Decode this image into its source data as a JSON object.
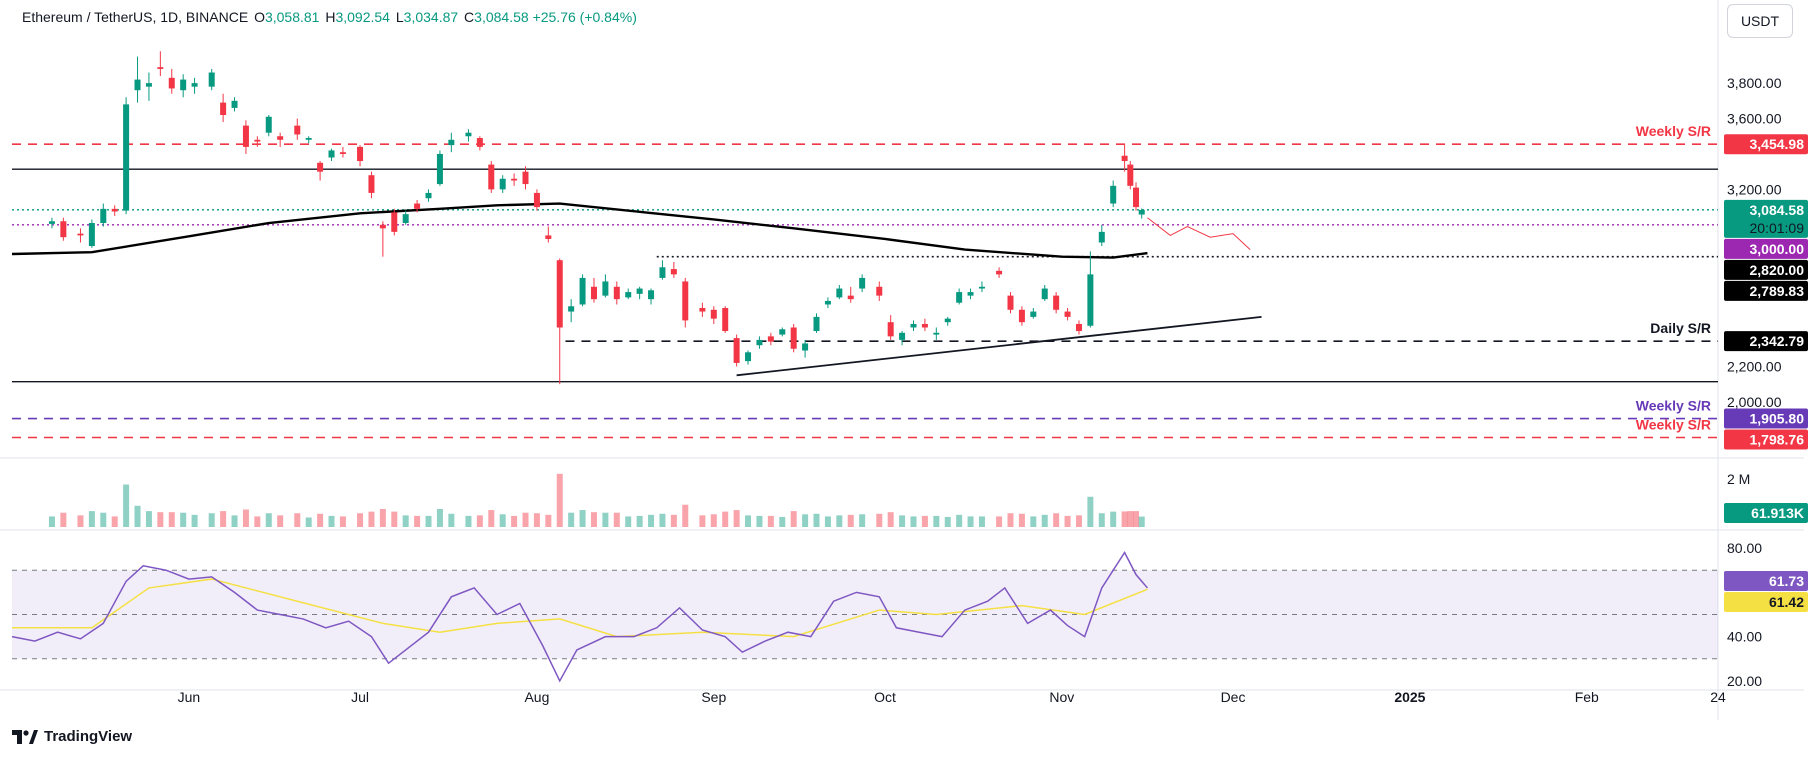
{
  "header": {
    "symbol": "Ethereum / TetherUS, 1D, BINANCE",
    "open_key": "O",
    "open": "3,058.81",
    "high_key": "H",
    "high": "3,092.54",
    "low_key": "L",
    "low": "3,034.87",
    "close_key": "C",
    "close": "3,084.58",
    "change": "+25.76 (+0.84%)"
  },
  "currency_button": "USDT",
  "brand": "TradingView",
  "colors": {
    "up": "#089981",
    "down": "#f23645",
    "ma": "#000000",
    "rsi": "#7e57c2",
    "rsi_ma": "#f5e044",
    "weekly": "#f23645",
    "purple": "#673ab7"
  },
  "chart_data": [
    {
      "type": "candlestick",
      "title": "",
      "price_axis_ticks": [
        "3,800.00",
        "3,600.00",
        "3,200.00",
        "2,200.00",
        "2,000.00"
      ],
      "time_axis_ticks": [
        "Jun",
        "Jul",
        "Aug",
        "Sep",
        "Oct",
        "Nov",
        "Dec",
        "2025",
        "Feb",
        "24"
      ],
      "ylim": [
        1700,
        4100
      ],
      "date_range": [
        "2024-05-01",
        "2025-02-24"
      ],
      "candles": [
        [
          "2024-05-08",
          3005,
          3040,
          2980,
          3020
        ],
        [
          "2024-05-10",
          3020,
          3040,
          2910,
          2930
        ],
        [
          "2024-05-13",
          2950,
          2980,
          2900,
          2940
        ],
        [
          "2024-05-15",
          2880,
          3030,
          2870,
          3010
        ],
        [
          "2024-05-17",
          3010,
          3120,
          2990,
          3090
        ],
        [
          "2024-05-19",
          3090,
          3110,
          3050,
          3075
        ],
        [
          "2024-05-21",
          3080,
          3720,
          3060,
          3680
        ],
        [
          "2024-05-23",
          3760,
          3950,
          3690,
          3820
        ],
        [
          "2024-05-25",
          3780,
          3860,
          3700,
          3800
        ],
        [
          "2024-05-27",
          3890,
          3980,
          3840,
          3880
        ],
        [
          "2024-05-29",
          3830,
          3880,
          3740,
          3770
        ],
        [
          "2024-05-31",
          3760,
          3850,
          3720,
          3820
        ],
        [
          "2024-06-02",
          3780,
          3830,
          3740,
          3800
        ],
        [
          "2024-06-05",
          3780,
          3880,
          3760,
          3860
        ],
        [
          "2024-06-07",
          3690,
          3740,
          3580,
          3620
        ],
        [
          "2024-06-09",
          3660,
          3720,
          3640,
          3700
        ],
        [
          "2024-06-11",
          3560,
          3590,
          3400,
          3440
        ],
        [
          "2024-06-13",
          3480,
          3500,
          3440,
          3470
        ],
        [
          "2024-06-15",
          3520,
          3620,
          3500,
          3610
        ],
        [
          "2024-06-17",
          3500,
          3520,
          3440,
          3480
        ],
        [
          "2024-06-20",
          3560,
          3600,
          3480,
          3510
        ],
        [
          "2024-06-22",
          3480,
          3500,
          3460,
          3490
        ],
        [
          "2024-06-24",
          3350,
          3360,
          3250,
          3300
        ],
        [
          "2024-06-26",
          3380,
          3430,
          3360,
          3420
        ],
        [
          "2024-06-28",
          3410,
          3440,
          3380,
          3400
        ],
        [
          "2024-07-01",
          3440,
          3450,
          3330,
          3360
        ],
        [
          "2024-07-03",
          3280,
          3300,
          3150,
          3180
        ],
        [
          "2024-07-05",
          3000,
          3020,
          2820,
          2980
        ],
        [
          "2024-07-07",
          3070,
          3090,
          2940,
          2960
        ],
        [
          "2024-07-09",
          3010,
          3080,
          3000,
          3060
        ],
        [
          "2024-07-11",
          3120,
          3140,
          3070,
          3090
        ],
        [
          "2024-07-13",
          3150,
          3200,
          3130,
          3180
        ],
        [
          "2024-07-15",
          3230,
          3420,
          3220,
          3400
        ],
        [
          "2024-07-17",
          3450,
          3520,
          3410,
          3480
        ],
        [
          "2024-07-20",
          3500,
          3540,
          3470,
          3520
        ],
        [
          "2024-07-22",
          3490,
          3500,
          3420,
          3440
        ],
        [
          "2024-07-24",
          3340,
          3360,
          3180,
          3200
        ],
        [
          "2024-07-26",
          3200,
          3280,
          3180,
          3260
        ],
        [
          "2024-07-28",
          3260,
          3290,
          3220,
          3250
        ],
        [
          "2024-07-30",
          3300,
          3330,
          3200,
          3230
        ],
        [
          "2024-08-01",
          3180,
          3200,
          3080,
          3100
        ],
        [
          "2024-08-03",
          2940,
          2990,
          2900,
          2920
        ],
        [
          "2024-08-05",
          2800,
          2810,
          2100,
          2420
        ],
        [
          "2024-08-07",
          2510,
          2580,
          2450,
          2540
        ],
        [
          "2024-08-09",
          2550,
          2720,
          2540,
          2700
        ],
        [
          "2024-08-11",
          2650,
          2700,
          2560,
          2580
        ],
        [
          "2024-08-13",
          2600,
          2720,
          2590,
          2680
        ],
        [
          "2024-08-15",
          2650,
          2680,
          2550,
          2580
        ],
        [
          "2024-08-17",
          2590,
          2640,
          2580,
          2620
        ],
        [
          "2024-08-19",
          2610,
          2650,
          2580,
          2640
        ],
        [
          "2024-08-21",
          2580,
          2640,
          2550,
          2630
        ],
        [
          "2024-08-23",
          2700,
          2800,
          2690,
          2760
        ],
        [
          "2024-08-25",
          2750,
          2790,
          2700,
          2720
        ],
        [
          "2024-08-27",
          2680,
          2700,
          2420,
          2460
        ],
        [
          "2024-08-30",
          2530,
          2560,
          2480,
          2510
        ],
        [
          "2024-09-01",
          2520,
          2540,
          2440,
          2470
        ],
        [
          "2024-09-03",
          2530,
          2540,
          2390,
          2400
        ],
        [
          "2024-09-05",
          2360,
          2380,
          2200,
          2220
        ],
        [
          "2024-09-07",
          2230,
          2290,
          2210,
          2280
        ],
        [
          "2024-09-09",
          2320,
          2370,
          2300,
          2350
        ],
        [
          "2024-09-11",
          2370,
          2390,
          2320,
          2340
        ],
        [
          "2024-09-13",
          2380,
          2420,
          2370,
          2410
        ],
        [
          "2024-09-15",
          2420,
          2440,
          2280,
          2300
        ],
        [
          "2024-09-17",
          2290,
          2350,
          2250,
          2330
        ],
        [
          "2024-09-19",
          2400,
          2500,
          2390,
          2480
        ],
        [
          "2024-09-21",
          2550,
          2590,
          2530,
          2570
        ],
        [
          "2024-09-23",
          2590,
          2660,
          2580,
          2640
        ],
        [
          "2024-09-25",
          2600,
          2650,
          2560,
          2580
        ],
        [
          "2024-09-27",
          2640,
          2720,
          2620,
          2700
        ],
        [
          "2024-09-30",
          2650,
          2680,
          2570,
          2600
        ],
        [
          "2024-10-02",
          2450,
          2490,
          2350,
          2370
        ],
        [
          "2024-10-04",
          2350,
          2400,
          2320,
          2390
        ],
        [
          "2024-10-06",
          2420,
          2460,
          2400,
          2440
        ],
        [
          "2024-10-08",
          2440,
          2470,
          2400,
          2420
        ],
        [
          "2024-10-10",
          2380,
          2420,
          2350,
          2390
        ],
        [
          "2024-10-12",
          2450,
          2480,
          2430,
          2470
        ],
        [
          "2024-10-14",
          2560,
          2640,
          2550,
          2620
        ],
        [
          "2024-10-16",
          2600,
          2640,
          2580,
          2620
        ],
        [
          "2024-10-18",
          2640,
          2680,
          2620,
          2650
        ],
        [
          "2024-10-21",
          2740,
          2760,
          2700,
          2720
        ],
        [
          "2024-10-23",
          2600,
          2620,
          2500,
          2520
        ],
        [
          "2024-10-25",
          2520,
          2540,
          2430,
          2450
        ],
        [
          "2024-10-27",
          2480,
          2530,
          2470,
          2510
        ],
        [
          "2024-10-29",
          2580,
          2660,
          2570,
          2640
        ],
        [
          "2024-10-31",
          2600,
          2620,
          2500,
          2520
        ],
        [
          "2024-11-02",
          2510,
          2530,
          2460,
          2480
        ],
        [
          "2024-11-04",
          2440,
          2460,
          2380,
          2400
        ],
        [
          "2024-11-06",
          2430,
          2850,
          2420,
          2720
        ],
        [
          "2024-11-08",
          2900,
          3000,
          2880,
          2960
        ],
        [
          "2024-11-10",
          3120,
          3250,
          3100,
          3220
        ],
        [
          "2024-11-12",
          3390,
          3454,
          3300,
          3360
        ],
        [
          "2024-11-13",
          3340,
          3360,
          3200,
          3220
        ],
        [
          "2024-11-14",
          3210,
          3240,
          3080,
          3100
        ],
        [
          "2024-11-15",
          3058,
          3092,
          3035,
          3084
        ]
      ],
      "ma_200": [
        [
          "2024-05-01",
          2835
        ],
        [
          "2024-05-15",
          2845
        ],
        [
          "2024-06-01",
          2935
        ],
        [
          "2024-06-15",
          3010
        ],
        [
          "2024-07-01",
          3065
        ],
        [
          "2024-07-15",
          3090
        ],
        [
          "2024-07-25",
          3110
        ],
        [
          "2024-08-05",
          3120
        ],
        [
          "2024-08-20",
          3070
        ],
        [
          "2024-09-01",
          3030
        ],
        [
          "2024-09-15",
          2980
        ],
        [
          "2024-10-01",
          2920
        ],
        [
          "2024-10-15",
          2860
        ],
        [
          "2024-11-01",
          2820
        ],
        [
          "2024-11-10",
          2815
        ],
        [
          "2024-11-16",
          2840
        ]
      ],
      "forecast_path": [
        [
          "2024-11-16",
          3040
        ],
        [
          "2024-11-20",
          2940
        ],
        [
          "2024-11-23",
          2990
        ],
        [
          "2024-11-27",
          2930
        ],
        [
          "2024-12-01",
          2950
        ],
        [
          "2024-12-04",
          2860
        ]
      ],
      "levels": [
        {
          "price": 3454.98,
          "label": "3,454.98",
          "note": "Weekly S/R",
          "color": "#f23645",
          "style": "dashed"
        },
        {
          "price": 3314,
          "label": "",
          "note": "",
          "color": "#131722",
          "style": "solid"
        },
        {
          "price": 3084.58,
          "label": "3,084.58",
          "sublabel": "20:01:09",
          "note": "",
          "color": "#089981",
          "style": "dotted"
        },
        {
          "price": 3000.0,
          "label": "3,000.00",
          "note": "",
          "color": "#9c27b0",
          "style": "dotted"
        },
        {
          "price": 2820.0,
          "label": "2,820.00",
          "note": "",
          "color": "#131722",
          "style": "dotted-short"
        },
        {
          "price": 2789.83,
          "label": "2,789.83",
          "note": "",
          "color": "#131722",
          "style": "none"
        },
        {
          "price": 2342.79,
          "label": "2,342.79",
          "note": "Daily S/R",
          "color": "#131722",
          "style": "dashed"
        },
        {
          "price": 2114,
          "label": "",
          "note": "",
          "color": "#131722",
          "style": "solid"
        },
        {
          "price": 1905.8,
          "label": "1,905.80",
          "note": "Weekly S/R",
          "color": "#673ab7",
          "style": "dashed"
        },
        {
          "price": 1798.76,
          "label": "1,798.76",
          "note": "Weekly S/R",
          "color": "#f23645",
          "style": "dashed"
        }
      ],
      "trendline": [
        [
          "2024-09-05",
          2150
        ],
        [
          "2024-12-06",
          2480
        ]
      ]
    },
    {
      "type": "bar",
      "title": "",
      "series_name": "Volume",
      "axis_label": "2 M",
      "last_value_label": "61.913K",
      "ylim": [
        0,
        2200000
      ]
    },
    {
      "type": "line",
      "title": "",
      "axis_ticks": [
        "80.00",
        "40.00",
        "20.00"
      ],
      "ylim": [
        15,
        85
      ],
      "bands": [
        70,
        50,
        30
      ],
      "rsi_label": "61.73",
      "rsi_ma_label": "61.42",
      "rsi": [
        [
          "2024-05-01",
          40
        ],
        [
          "2024-05-05",
          38
        ],
        [
          "2024-05-09",
          42
        ],
        [
          "2024-05-13",
          39
        ],
        [
          "2024-05-17",
          46
        ],
        [
          "2024-05-21",
          65
        ],
        [
          "2024-05-24",
          72
        ],
        [
          "2024-05-28",
          70
        ],
        [
          "2024-06-01",
          66
        ],
        [
          "2024-06-05",
          67
        ],
        [
          "2024-06-09",
          60
        ],
        [
          "2024-06-13",
          52
        ],
        [
          "2024-06-17",
          50
        ],
        [
          "2024-06-21",
          48
        ],
        [
          "2024-06-25",
          44
        ],
        [
          "2024-06-29",
          47
        ],
        [
          "2024-07-03",
          40
        ],
        [
          "2024-07-06",
          28
        ],
        [
          "2024-07-09",
          34
        ],
        [
          "2024-07-13",
          42
        ],
        [
          "2024-07-17",
          58
        ],
        [
          "2024-07-21",
          62
        ],
        [
          "2024-07-25",
          50
        ],
        [
          "2024-07-29",
          55
        ],
        [
          "2024-08-02",
          36
        ],
        [
          "2024-08-05",
          20
        ],
        [
          "2024-08-08",
          34
        ],
        [
          "2024-08-13",
          40
        ],
        [
          "2024-08-18",
          40
        ],
        [
          "2024-08-22",
          44
        ],
        [
          "2024-08-26",
          53
        ],
        [
          "2024-08-30",
          43
        ],
        [
          "2024-09-03",
          40
        ],
        [
          "2024-09-06",
          33
        ],
        [
          "2024-09-10",
          38
        ],
        [
          "2024-09-14",
          42
        ],
        [
          "2024-09-18",
          40
        ],
        [
          "2024-09-22",
          56
        ],
        [
          "2024-09-26",
          60
        ],
        [
          "2024-09-30",
          58
        ],
        [
          "2024-10-03",
          44
        ],
        [
          "2024-10-07",
          42
        ],
        [
          "2024-10-11",
          40
        ],
        [
          "2024-10-15",
          52
        ],
        [
          "2024-10-19",
          56
        ],
        [
          "2024-10-22",
          62
        ],
        [
          "2024-10-26",
          46
        ],
        [
          "2024-10-30",
          52
        ],
        [
          "2024-11-02",
          45
        ],
        [
          "2024-11-05",
          40
        ],
        [
          "2024-11-08",
          62
        ],
        [
          "2024-11-12",
          78
        ],
        [
          "2024-11-14",
          68
        ],
        [
          "2024-11-16",
          62
        ]
      ],
      "rsi_ma": [
        [
          "2024-05-01",
          44
        ],
        [
          "2024-05-15",
          44
        ],
        [
          "2024-05-25",
          62
        ],
        [
          "2024-06-05",
          66
        ],
        [
          "2024-06-20",
          56
        ],
        [
          "2024-07-05",
          46
        ],
        [
          "2024-07-15",
          42
        ],
        [
          "2024-07-25",
          46
        ],
        [
          "2024-08-05",
          48
        ],
        [
          "2024-08-15",
          40
        ],
        [
          "2024-08-30",
          42
        ],
        [
          "2024-09-15",
          40
        ],
        [
          "2024-09-30",
          52
        ],
        [
          "2024-10-10",
          50
        ],
        [
          "2024-10-25",
          54
        ],
        [
          "2024-11-05",
          50
        ],
        [
          "2024-11-16",
          61.4
        ]
      ]
    }
  ]
}
